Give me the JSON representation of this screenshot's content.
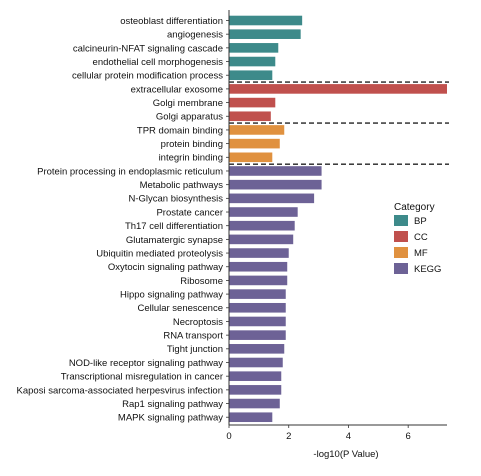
{
  "chart_data": {
    "type": "bar",
    "orientation": "horizontal",
    "xlabel": "-log10(P Value)",
    "xlim": [
      0,
      7.3
    ],
    "xticks": [
      "0",
      "2",
      "4",
      "6"
    ],
    "grid": false,
    "legend": {
      "title": "Category",
      "placement": "right",
      "entries": [
        {
          "name": "BP",
          "color": "#3d8a8a"
        },
        {
          "name": "CC",
          "color": "#c0504d"
        },
        {
          "name": "MF",
          "color": "#e0913f"
        },
        {
          "name": "KEGG",
          "color": "#6d6296"
        }
      ]
    },
    "bars": [
      {
        "label": "osteoblast differentiation",
        "value": 2.45,
        "category": "BP"
      },
      {
        "label": "angiogenesis",
        "value": 2.4,
        "category": "BP"
      },
      {
        "label": "calcineurin-NFAT signaling cascade",
        "value": 1.65,
        "category": "BP"
      },
      {
        "label": "endothelial cell morphogenesis",
        "value": 1.55,
        "category": "BP"
      },
      {
        "label": "cellular protein modification process",
        "value": 1.45,
        "category": "BP"
      },
      {
        "label": "extracellular exosome",
        "value": 7.3,
        "category": "CC"
      },
      {
        "label": "Golgi membrane",
        "value": 1.55,
        "category": "CC"
      },
      {
        "label": "Golgi apparatus",
        "value": 1.4,
        "category": "CC"
      },
      {
        "label": "TPR domain binding",
        "value": 1.85,
        "category": "MF"
      },
      {
        "label": "protein binding",
        "value": 1.7,
        "category": "MF"
      },
      {
        "label": "integrin binding",
        "value": 1.45,
        "category": "MF"
      },
      {
        "label": "Protein processing in endoplasmic reticulum",
        "value": 3.1,
        "category": "KEGG"
      },
      {
        "label": "Metabolic pathways",
        "value": 3.1,
        "category": "KEGG"
      },
      {
        "label": "N-Glycan biosynthesis",
        "value": 2.85,
        "category": "KEGG"
      },
      {
        "label": "Prostate cancer",
        "value": 2.3,
        "category": "KEGG"
      },
      {
        "label": "Th17 cell differentiation",
        "value": 2.2,
        "category": "KEGG"
      },
      {
        "label": "Glutamatergic synapse",
        "value": 2.15,
        "category": "KEGG"
      },
      {
        "label": "Ubiquitin mediated proteolysis",
        "value": 2.0,
        "category": "KEGG"
      },
      {
        "label": "Oxytocin signaling pathway",
        "value": 1.95,
        "category": "KEGG"
      },
      {
        "label": "Ribosome",
        "value": 1.95,
        "category": "KEGG"
      },
      {
        "label": "Hippo signaling pathway",
        "value": 1.9,
        "category": "KEGG"
      },
      {
        "label": "Cellular senescence",
        "value": 1.9,
        "category": "KEGG"
      },
      {
        "label": "Necroptosis",
        "value": 1.9,
        "category": "KEGG"
      },
      {
        "label": "RNA transport",
        "value": 1.9,
        "category": "KEGG"
      },
      {
        "label": "Tight junction",
        "value": 1.85,
        "category": "KEGG"
      },
      {
        "label": "NOD-like receptor signaling pathway",
        "value": 1.8,
        "category": "KEGG"
      },
      {
        "label": "Transcriptional misregulation in cancer",
        "value": 1.75,
        "category": "KEGG"
      },
      {
        "label": "Kaposi sarcoma-associated herpesvirus infection",
        "value": 1.75,
        "category": "KEGG"
      },
      {
        "label": "Rap1 signaling pathway",
        "value": 1.7,
        "category": "KEGG"
      },
      {
        "label": "MAPK signaling pathway",
        "value": 1.45,
        "category": "KEGG"
      }
    ]
  }
}
